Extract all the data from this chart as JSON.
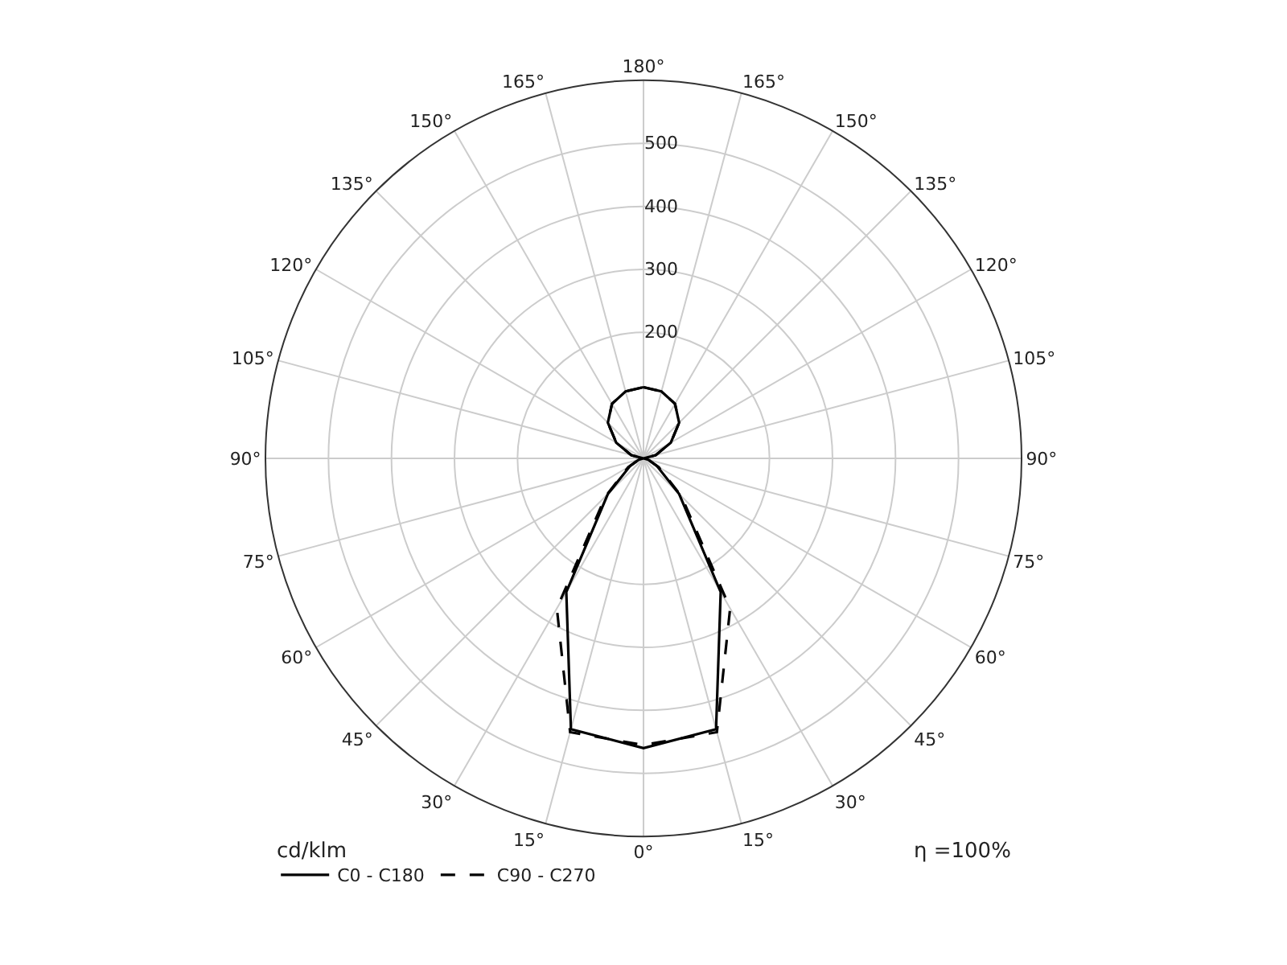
{
  "chart_data": {
    "type": "radar",
    "ylabel": "cd/klm",
    "annotations": [
      "η =100%"
    ],
    "categories": [
      "180°",
      "165°",
      "150°",
      "135°",
      "120°",
      "105°",
      "90°",
      "75°",
      "60°",
      "45°",
      "30°",
      "15°",
      "0°",
      "15°",
      "30°",
      "45°",
      "60°",
      "75°",
      "90°",
      "105°",
      "120°",
      "135°",
      "150°",
      "165°"
    ],
    "series": [
      {
        "name": "C0 - C180",
        "color": "#000000",
        "line_style": "solid",
        "values": [
          113,
          110,
          100,
          80,
          50,
          20,
          0,
          8,
          25,
          80,
          245,
          445,
          460,
          445,
          245,
          80,
          25,
          8,
          0,
          20,
          50,
          80,
          100,
          110
        ]
      },
      {
        "name": "C90 - C270",
        "color": "#000000",
        "line_style": "dashed",
        "values": [
          113,
          110,
          100,
          80,
          50,
          20,
          0,
          8,
          28,
          85,
          275,
          450,
          455,
          450,
          275,
          85,
          28,
          8,
          0,
          20,
          50,
          80,
          100,
          110
        ]
      }
    ],
    "ylim": [
      0,
      600
    ],
    "yticks": [
      200,
      300,
      400,
      500
    ],
    "grid": true,
    "legend": "bottom left",
    "marker": "none"
  }
}
